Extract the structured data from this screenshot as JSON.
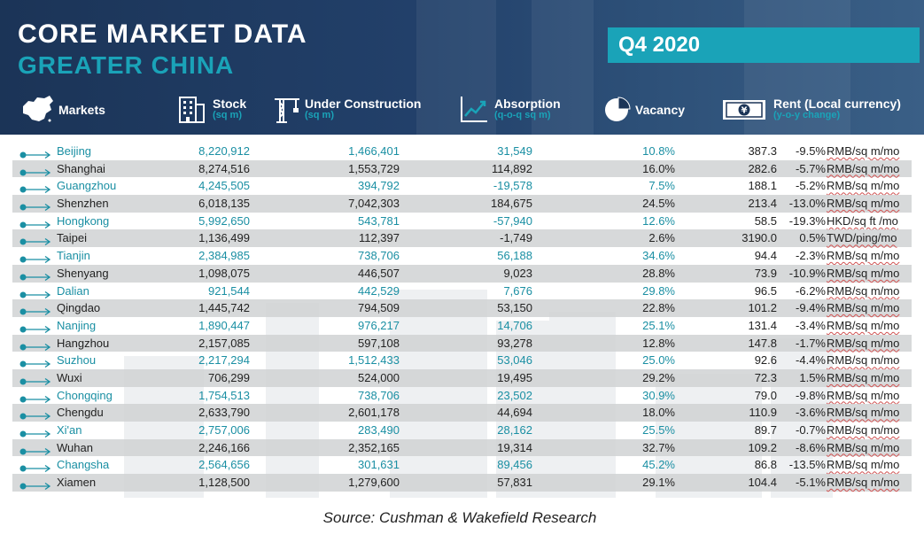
{
  "header": {
    "title_line1": "CORE MARKET DATA",
    "title_line2": "GREATER CHINA",
    "quarter": "Q4 2020",
    "columns": {
      "markets": {
        "label": "Markets",
        "icon": "china-map-icon"
      },
      "stock": {
        "label": "Stock",
        "sub": "(sq m)",
        "icon": "building-icon"
      },
      "under_construction": {
        "label": "Under Construction",
        "sub": "(sq m)",
        "icon": "crane-icon"
      },
      "absorption": {
        "label": "Absorption",
        "sub": "(q-o-q sq m)",
        "icon": "trend-chart-icon"
      },
      "vacancy": {
        "label": "Vacancy",
        "icon": "pie-chart-icon"
      },
      "rent": {
        "label": "Rent (Local currency)",
        "sub": "(y-o-y change)",
        "icon": "yen-banknote-icon"
      }
    }
  },
  "colors": {
    "navy": "#1b3457",
    "teal": "#1aa3b8",
    "row_alt": "#d0d2d4"
  },
  "rows": [
    {
      "market": "Beijing",
      "stock": "8,220,912",
      "under_construction": "1,466,401",
      "absorption": "31,549",
      "vacancy": "10.8%",
      "rent": "387.3",
      "change": "-9.5%",
      "unit": "RMB/sq m/mo"
    },
    {
      "market": "Shanghai",
      "stock": "8,274,516",
      "under_construction": "1,553,729",
      "absorption": "114,892",
      "vacancy": "16.0%",
      "rent": "282.6",
      "change": "-5.7%",
      "unit": "RMB/sq m/mo"
    },
    {
      "market": "Guangzhou",
      "stock": "4,245,505",
      "under_construction": "394,792",
      "absorption": "-19,578",
      "vacancy": "7.5%",
      "rent": "188.1",
      "change": "-5.2%",
      "unit": "RMB/sq m/mo"
    },
    {
      "market": "Shenzhen",
      "stock": "6,018,135",
      "under_construction": "7,042,303",
      "absorption": "184,675",
      "vacancy": "24.5%",
      "rent": "213.4",
      "change": "-13.0%",
      "unit": "RMB/sq m/mo"
    },
    {
      "market": "Hongkong",
      "stock": "5,992,650",
      "under_construction": "543,781",
      "absorption": "-57,940",
      "vacancy": "12.6%",
      "rent": "58.5",
      "change": "-19.3%",
      "unit": "HKD/sq ft /mo"
    },
    {
      "market": "Taipei",
      "stock": "1,136,499",
      "under_construction": "112,397",
      "absorption": "-1,749",
      "vacancy": "2.6%",
      "rent": "3190.0",
      "change": "0.5%",
      "unit": "TWD/ping/mo"
    },
    {
      "market": "Tianjin",
      "stock": "2,384,985",
      "under_construction": "738,706",
      "absorption": "56,188",
      "vacancy": "34.6%",
      "rent": "94.4",
      "change": "-2.3%",
      "unit": "RMB/sq m/mo"
    },
    {
      "market": "Shenyang",
      "stock": "1,098,075",
      "under_construction": "446,507",
      "absorption": "9,023",
      "vacancy": "28.8%",
      "rent": "73.9",
      "change": "-10.9%",
      "unit": "RMB/sq m/mo"
    },
    {
      "market": "Dalian",
      "stock": "921,544",
      "under_construction": "442,529",
      "absorption": "7,676",
      "vacancy": "29.8%",
      "rent": "96.5",
      "change": "-6.2%",
      "unit": "RMB/sq m/mo"
    },
    {
      "market": "Qingdao",
      "stock": "1,445,742",
      "under_construction": "794,509",
      "absorption": "53,150",
      "vacancy": "22.8%",
      "rent": "101.2",
      "change": "-9.4%",
      "unit": "RMB/sq m/mo"
    },
    {
      "market": "Nanjing",
      "stock": "1,890,447",
      "under_construction": "976,217",
      "absorption": "14,706",
      "vacancy": "25.1%",
      "rent": "131.4",
      "change": "-3.4%",
      "unit": "RMB/sq m/mo"
    },
    {
      "market": "Hangzhou",
      "stock": "2,157,085",
      "under_construction": "597,108",
      "absorption": "93,278",
      "vacancy": "12.8%",
      "rent": "147.8",
      "change": "-1.7%",
      "unit": "RMB/sq m/mo"
    },
    {
      "market": "Suzhou",
      "stock": "2,217,294",
      "under_construction": "1,512,433",
      "absorption": "53,046",
      "vacancy": "25.0%",
      "rent": "92.6",
      "change": "-4.4%",
      "unit": "RMB/sq m/mo"
    },
    {
      "market": "Wuxi",
      "stock": "706,299",
      "under_construction": "524,000",
      "absorption": "19,495",
      "vacancy": "29.2%",
      "rent": "72.3",
      "change": "1.5%",
      "unit": "RMB/sq m/mo"
    },
    {
      "market": "Chongqing",
      "stock": "1,754,513",
      "under_construction": "738,706",
      "absorption": "23,502",
      "vacancy": "30.9%",
      "rent": "79.0",
      "change": "-9.8%",
      "unit": "RMB/sq m/mo"
    },
    {
      "market": "Chengdu",
      "stock": "2,633,790",
      "under_construction": "2,601,178",
      "absorption": "44,694",
      "vacancy": "18.0%",
      "rent": "110.9",
      "change": "-3.6%",
      "unit": "RMB/sq m/mo"
    },
    {
      "market": "Xi'an",
      "stock": "2,757,006",
      "under_construction": "283,490",
      "absorption": "28,162",
      "vacancy": "25.5%",
      "rent": "89.7",
      "change": "-0.7%",
      "unit": "RMB/sq m/mo"
    },
    {
      "market": "Wuhan",
      "stock": "2,246,166",
      "under_construction": "2,352,165",
      "absorption": "19,314",
      "vacancy": "32.7%",
      "rent": "109.2",
      "change": "-8.6%",
      "unit": "RMB/sq m/mo"
    },
    {
      "market": "Changsha",
      "stock": "2,564,656",
      "under_construction": "301,631",
      "absorption": "89,456",
      "vacancy": "45.2%",
      "rent": "86.8",
      "change": "-13.5%",
      "unit": "RMB/sq m/mo"
    },
    {
      "market": "Xiamen",
      "stock": "1,128,500",
      "under_construction": "1,279,600",
      "absorption": "57,831",
      "vacancy": "29.1%",
      "rent": "104.4",
      "change": "-5.1%",
      "unit": "RMB/sq m/mo"
    }
  ],
  "source": "Source: Cushman & Wakefield Research"
}
